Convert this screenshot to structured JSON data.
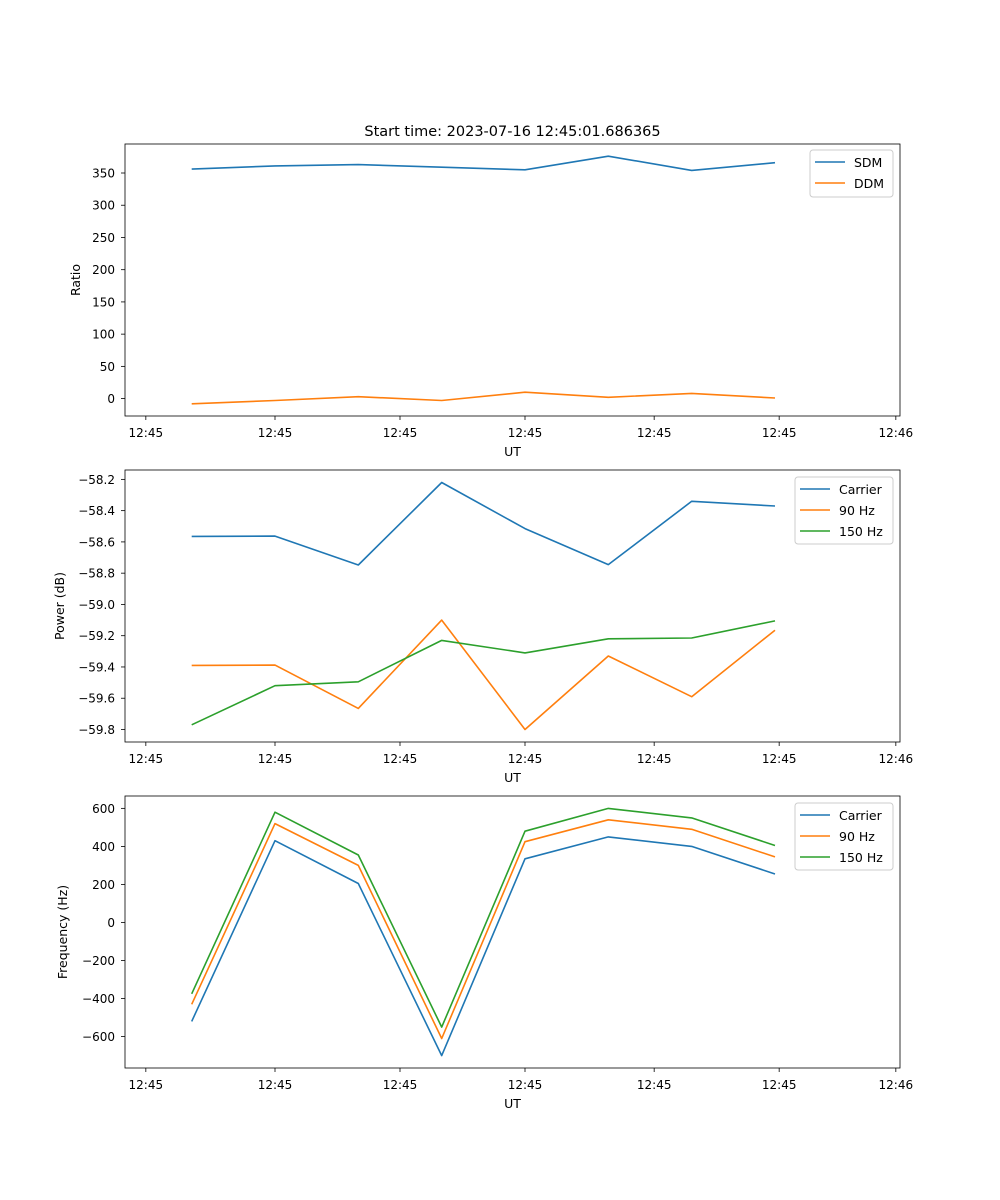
{
  "chart_data": [
    {
      "type": "line",
      "title": "Start time: 2023-07-16 12:45:01.686365",
      "xlabel": "UT",
      "ylabel": "Ratio",
      "x": [
        1,
        2,
        3,
        4,
        5,
        6,
        7,
        8
      ],
      "xlim": [
        0.2,
        9.5
      ],
      "xticks": [
        0.45,
        2.0,
        3.5,
        5.0,
        6.55,
        8.05,
        9.45
      ],
      "xtick_labels": [
        "12:45",
        "12:45",
        "12:45",
        "12:45",
        "12:45",
        "12:45",
        "12:46"
      ],
      "ylim": [
        -27,
        395
      ],
      "yticks": [
        0,
        50,
        100,
        150,
        200,
        250,
        300,
        350
      ],
      "ytick_labels": [
        "0",
        "50",
        "100",
        "150",
        "200",
        "250",
        "300",
        "350"
      ],
      "legend": "top-right",
      "series": [
        {
          "name": "SDM",
          "color": "#1f77b4",
          "values": [
            356,
            361,
            363,
            359,
            355,
            376,
            354,
            366
          ]
        },
        {
          "name": "DDM",
          "color": "#ff7f0e",
          "values": [
            -8,
            -3,
            3,
            -3,
            10,
            2,
            8,
            1
          ]
        }
      ]
    },
    {
      "type": "line",
      "title": "",
      "xlabel": "UT",
      "ylabel": "Power (dB)",
      "x": [
        1,
        2,
        3,
        4,
        5,
        6,
        7,
        8
      ],
      "xlim": [
        0.2,
        9.5
      ],
      "xticks": [
        0.45,
        2.0,
        3.5,
        5.0,
        6.55,
        8.05,
        9.45
      ],
      "xtick_labels": [
        "12:45",
        "12:45",
        "12:45",
        "12:45",
        "12:45",
        "12:45",
        "12:46"
      ],
      "ylim": [
        -59.88,
        -58.14
      ],
      "yticks": [
        -59.8,
        -59.6,
        -59.4,
        -59.2,
        -59.0,
        -58.8,
        -58.6,
        -58.4,
        -58.2
      ],
      "ytick_labels": [
        "−59.8",
        "−59.6",
        "−59.4",
        "−59.2",
        "−59.0",
        "−58.8",
        "−58.6",
        "−58.4",
        "−58.2"
      ],
      "legend": "top-right",
      "series": [
        {
          "name": "Carrier",
          "color": "#1f77b4",
          "values": [
            -58.565,
            -58.563,
            -58.748,
            -58.22,
            -58.515,
            -58.745,
            -58.34,
            -58.37
          ]
        },
        {
          "name": "90 Hz",
          "color": "#ff7f0e",
          "values": [
            -59.39,
            -59.388,
            -59.665,
            -59.1,
            -59.8,
            -59.33,
            -59.59,
            -59.165
          ]
        },
        {
          "name": "150 Hz",
          "color": "#2ca02c",
          "values": [
            -59.77,
            -59.52,
            -59.495,
            -59.23,
            -59.31,
            -59.22,
            -59.215,
            -59.105
          ]
        }
      ]
    },
    {
      "type": "line",
      "title": "",
      "xlabel": "UT",
      "ylabel": "Frequency (Hz)",
      "x": [
        1,
        2,
        3,
        4,
        5,
        6,
        7,
        8
      ],
      "xlim": [
        0.2,
        9.5
      ],
      "xticks": [
        0.45,
        2.0,
        3.5,
        5.0,
        6.55,
        8.05,
        9.45
      ],
      "xtick_labels": [
        "12:45",
        "12:45",
        "12:45",
        "12:45",
        "12:45",
        "12:45",
        "12:46"
      ],
      "ylim": [
        -765,
        665
      ],
      "yticks": [
        -600,
        -400,
        -200,
        0,
        200,
        400,
        600
      ],
      "ytick_labels": [
        "−600",
        "−400",
        "−200",
        "0",
        "200",
        "400",
        "600"
      ],
      "legend": "top-right",
      "series": [
        {
          "name": "Carrier",
          "color": "#1f77b4",
          "values": [
            -520,
            430,
            205,
            -700,
            335,
            450,
            400,
            255
          ]
        },
        {
          "name": "90 Hz",
          "color": "#ff7f0e",
          "values": [
            -430,
            520,
            300,
            -610,
            425,
            540,
            490,
            345
          ]
        },
        {
          "name": "150 Hz",
          "color": "#2ca02c",
          "values": [
            -375,
            580,
            355,
            -550,
            480,
            600,
            550,
            405
          ]
        }
      ]
    }
  ]
}
